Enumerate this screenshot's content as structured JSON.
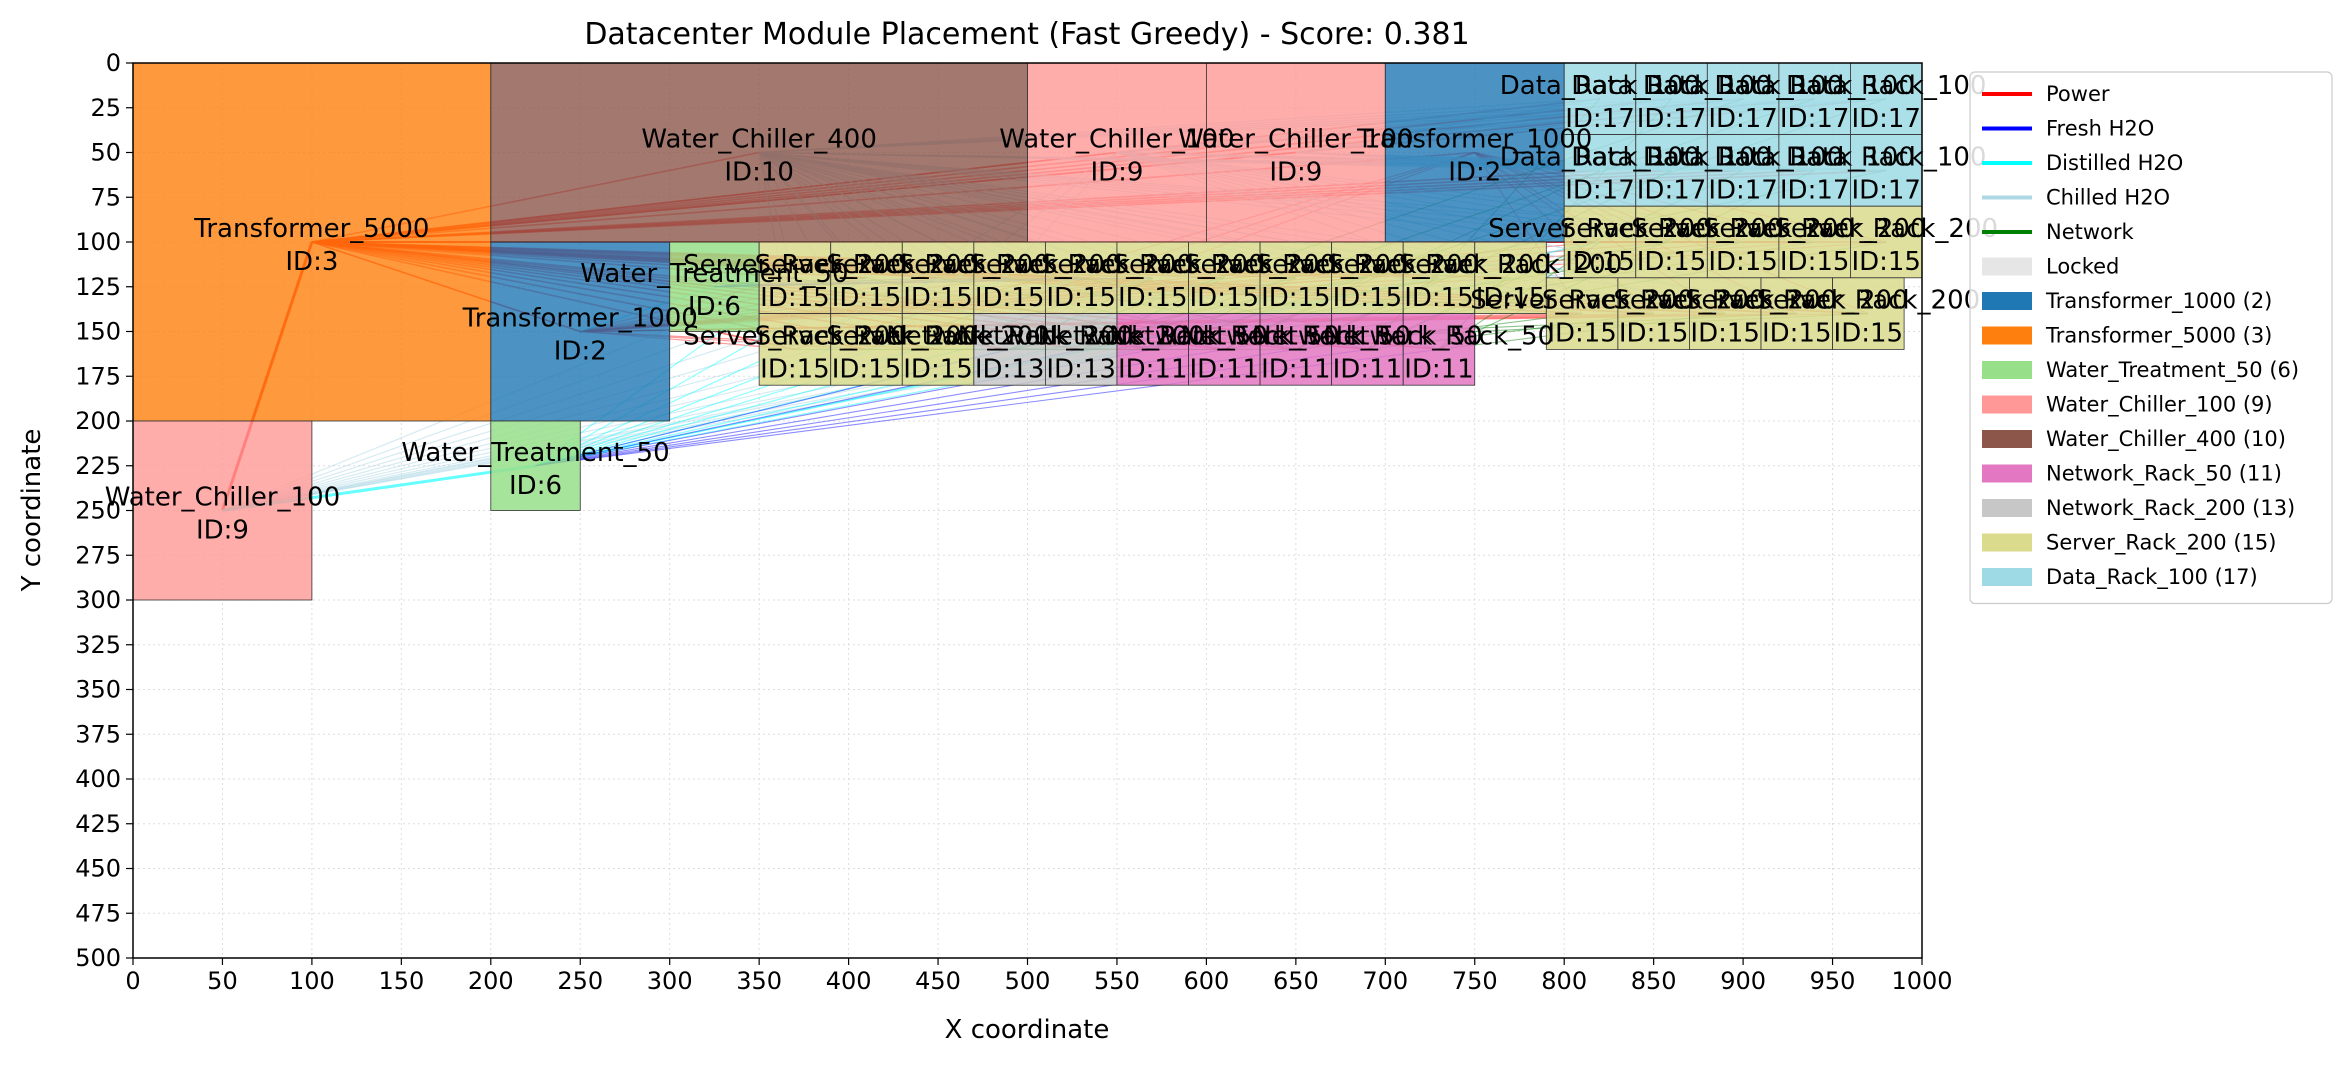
{
  "chart_data": {
    "type": "scatter",
    "title": "Datacenter Module Placement (Fast Greedy) - Score: 0.381",
    "xlabel": "X coordinate",
    "ylabel": "Y coordinate",
    "xlim": [
      0,
      1000
    ],
    "ylim": [
      500,
      0
    ],
    "y_inverted": true,
    "xticks": [
      0,
      50,
      100,
      150,
      200,
      250,
      300,
      350,
      400,
      450,
      500,
      550,
      600,
      650,
      700,
      750,
      800,
      850,
      900,
      950,
      1000
    ],
    "yticks": [
      0,
      25,
      50,
      75,
      100,
      125,
      150,
      175,
      200,
      225,
      250,
      275,
      300,
      325,
      350,
      375,
      400,
      425,
      450,
      475,
      500
    ],
    "grid": true,
    "legend_position": "upper-right-outside",
    "legend": {
      "connections": [
        {
          "label": "Power",
          "color": "#ff0000"
        },
        {
          "label": "Fresh H2O",
          "color": "#0000ff"
        },
        {
          "label": "Distilled H2O",
          "color": "#00ffff"
        },
        {
          "label": "Chilled H2O",
          "color": "#add8e6"
        },
        {
          "label": "Network",
          "color": "#008000"
        }
      ],
      "patches": [
        {
          "label": "Locked",
          "color": "#e6e6e6"
        },
        {
          "label": "Transformer_1000 (2)",
          "color": "#1f77b4"
        },
        {
          "label": "Transformer_5000 (3)",
          "color": "#ff7f0e"
        },
        {
          "label": "Water_Treatment_50 (6)",
          "color": "#98df8a"
        },
        {
          "label": "Water_Chiller_100 (9)",
          "color": "#ff9896"
        },
        {
          "label": "Water_Chiller_400 (10)",
          "color": "#8c564b"
        },
        {
          "label": "Network_Rack_50 (11)",
          "color": "#e377c2"
        },
        {
          "label": "Network_Rack_200 (13)",
          "color": "#c7c7c7"
        },
        {
          "label": "Server_Rack_200 (15)",
          "color": "#dbdb8d"
        },
        {
          "label": "Data_Rack_100 (17)",
          "color": "#9edae5"
        }
      ]
    },
    "module_colors": {
      "2": "#1f77b4",
      "3": "#ff7f0e",
      "6": "#98df8a",
      "9": "#ff9896",
      "10": "#8c564b",
      "11": "#e377c2",
      "13": "#c7c7c7",
      "15": "#dbdb8d",
      "17": "#9edae5"
    },
    "module_names": {
      "2": "Transformer_1000",
      "3": "Transformer_5000",
      "6": "Water_Treatment_50",
      "9": "Water_Chiller_100",
      "10": "Water_Chiller_400",
      "11": "Network_Rack_50",
      "13": "Network_Rack_200",
      "15": "Server_Rack_200",
      "17": "Data_Rack_100"
    },
    "modules": [
      {
        "type_id": 3,
        "x": 0,
        "y": 0,
        "w": 200,
        "h": 200,
        "label": "Transformer_5000",
        "id_label": "ID:3",
        "lx": 100,
        "ly": 100
      },
      {
        "type_id": 10,
        "x": 200,
        "y": 0,
        "w": 300,
        "h": 100,
        "label": "Water_Chiller_400",
        "id_label": "ID:10",
        "lx": 350,
        "ly": 50
      },
      {
        "type_id": 9,
        "x": 500,
        "y": 0,
        "w": 100,
        "h": 100,
        "label": "Water_Chiller_100",
        "id_label": "ID:9",
        "lx": 550,
        "ly": 50
      },
      {
        "type_id": 9,
        "x": 600,
        "y": 0,
        "w": 100,
        "h": 100,
        "label": "Water_Chiller_100",
        "id_label": "ID:9",
        "lx": 650,
        "ly": 50
      },
      {
        "type_id": 2,
        "x": 700,
        "y": 0,
        "w": 100,
        "h": 100,
        "label": "Transformer_1000",
        "id_label": "ID:2",
        "lx": 750,
        "ly": 50
      },
      {
        "type_id": 2,
        "x": 200,
        "y": 100,
        "w": 100,
        "h": 100,
        "label": "Transformer_1000",
        "id_label": "ID:2",
        "lx": 250,
        "ly": 150
      },
      {
        "type_id": 6,
        "x": 300,
        "y": 100,
        "w": 50,
        "h": 50,
        "label": "Water_Treatment_50",
        "id_label": "ID:6",
        "lx": 325,
        "ly": 125
      },
      {
        "type_id": 6,
        "x": 200,
        "y": 200,
        "w": 50,
        "h": 50,
        "label": "Water_Treatment_50",
        "id_label": "ID:6",
        "lx": 225,
        "ly": 225
      },
      {
        "type_id": 9,
        "x": 0,
        "y": 200,
        "w": 100,
        "h": 100,
        "label": "Water_Chiller_100",
        "id_label": "ID:9",
        "lx": 50,
        "ly": 250
      },
      {
        "type_id": 17,
        "x": 800,
        "y": 0,
        "w": 40,
        "h": 40,
        "label": "Data_Rack_100",
        "id_label": "ID:17",
        "lx": 820,
        "ly": 20
      },
      {
        "type_id": 17,
        "x": 840,
        "y": 0,
        "w": 40,
        "h": 40,
        "label": "Data_Rack_100",
        "id_label": "ID:17",
        "lx": 860,
        "ly": 20
      },
      {
        "type_id": 17,
        "x": 880,
        "y": 0,
        "w": 40,
        "h": 40,
        "label": "Data_Rack_100",
        "id_label": "ID:17",
        "lx": 900,
        "ly": 20
      },
      {
        "type_id": 17,
        "x": 920,
        "y": 0,
        "w": 40,
        "h": 40,
        "label": "Data_Rack_100",
        "id_label": "ID:17",
        "lx": 940,
        "ly": 20
      },
      {
        "type_id": 17,
        "x": 960,
        "y": 0,
        "w": 40,
        "h": 40,
        "label": "Data_Rack_100",
        "id_label": "ID:17",
        "lx": 980,
        "ly": 20
      },
      {
        "type_id": 17,
        "x": 800,
        "y": 40,
        "w": 40,
        "h": 40,
        "label": "Data_Rack_100",
        "id_label": "ID:17",
        "lx": 820,
        "ly": 60
      },
      {
        "type_id": 17,
        "x": 840,
        "y": 40,
        "w": 40,
        "h": 40,
        "label": "Data_Rack_100",
        "id_label": "ID:17",
        "lx": 860,
        "ly": 60
      },
      {
        "type_id": 17,
        "x": 880,
        "y": 40,
        "w": 40,
        "h": 40,
        "label": "Data_Rack_100",
        "id_label": "ID:17",
        "lx": 900,
        "ly": 60
      },
      {
        "type_id": 17,
        "x": 920,
        "y": 40,
        "w": 40,
        "h": 40,
        "label": "Data_Rack_100",
        "id_label": "ID:17",
        "lx": 940,
        "ly": 60
      },
      {
        "type_id": 17,
        "x": 960,
        "y": 40,
        "w": 40,
        "h": 40,
        "label": "Data_Rack_100",
        "id_label": "ID:17",
        "lx": 980,
        "ly": 60
      },
      {
        "type_id": 15,
        "x": 350,
        "y": 100,
        "w": 40,
        "h": 40,
        "label": "Server_Rack_200",
        "id_label": "ID:15",
        "lx": 370,
        "ly": 120
      },
      {
        "type_id": 15,
        "x": 390,
        "y": 100,
        "w": 40,
        "h": 40,
        "label": "Server_Rack_200",
        "id_label": "ID:15",
        "lx": 410,
        "ly": 120
      },
      {
        "type_id": 15,
        "x": 430,
        "y": 100,
        "w": 40,
        "h": 40,
        "label": "Server_Rack_200",
        "id_label": "ID:15",
        "lx": 450,
        "ly": 120
      },
      {
        "type_id": 15,
        "x": 470,
        "y": 100,
        "w": 40,
        "h": 40,
        "label": "Server_Rack_200",
        "id_label": "ID:15",
        "lx": 490,
        "ly": 120
      },
      {
        "type_id": 15,
        "x": 510,
        "y": 100,
        "w": 40,
        "h": 40,
        "label": "Server_Rack_200",
        "id_label": "ID:15",
        "lx": 530,
        "ly": 120
      },
      {
        "type_id": 15,
        "x": 550,
        "y": 100,
        "w": 40,
        "h": 40,
        "label": "Server_Rack_200",
        "id_label": "ID:15",
        "lx": 570,
        "ly": 120
      },
      {
        "type_id": 15,
        "x": 590,
        "y": 100,
        "w": 40,
        "h": 40,
        "label": "Server_Rack_200",
        "id_label": "ID:15",
        "lx": 610,
        "ly": 120
      },
      {
        "type_id": 15,
        "x": 630,
        "y": 100,
        "w": 40,
        "h": 40,
        "label": "Server_Rack_200",
        "id_label": "ID:15",
        "lx": 650,
        "ly": 120
      },
      {
        "type_id": 15,
        "x": 670,
        "y": 100,
        "w": 40,
        "h": 40,
        "label": "Server_Rack_200",
        "id_label": "ID:15",
        "lx": 690,
        "ly": 120
      },
      {
        "type_id": 15,
        "x": 710,
        "y": 100,
        "w": 40,
        "h": 40,
        "label": "Server_Rack_200",
        "id_label": "ID:15",
        "lx": 730,
        "ly": 120
      },
      {
        "type_id": 15,
        "x": 750,
        "y": 100,
        "w": 40,
        "h": 40,
        "label": "Server_Rack_200",
        "id_label": "ID:15",
        "lx": 770,
        "ly": 120
      },
      {
        "type_id": 15,
        "x": 800,
        "y": 80,
        "w": 40,
        "h": 40,
        "label": "Server_Rack_200",
        "id_label": "ID:15",
        "lx": 820,
        "ly": 100
      },
      {
        "type_id": 15,
        "x": 840,
        "y": 80,
        "w": 40,
        "h": 40,
        "label": "Server_Rack_200",
        "id_label": "ID:15",
        "lx": 860,
        "ly": 100
      },
      {
        "type_id": 15,
        "x": 880,
        "y": 80,
        "w": 40,
        "h": 40,
        "label": "Server_Rack_200",
        "id_label": "ID:15",
        "lx": 900,
        "ly": 100
      },
      {
        "type_id": 15,
        "x": 920,
        "y": 80,
        "w": 40,
        "h": 40,
        "label": "Server_Rack_200",
        "id_label": "ID:15",
        "lx": 940,
        "ly": 100
      },
      {
        "type_id": 15,
        "x": 960,
        "y": 80,
        "w": 40,
        "h": 40,
        "label": "Server_Rack_200",
        "id_label": "ID:15",
        "lx": 980,
        "ly": 100
      },
      {
        "type_id": 15,
        "x": 790,
        "y": 120,
        "w": 40,
        "h": 40,
        "label": "Server_Rack_200",
        "id_label": "ID:15",
        "lx": 810,
        "ly": 140
      },
      {
        "type_id": 15,
        "x": 830,
        "y": 120,
        "w": 40,
        "h": 40,
        "label": "Server_Rack_200",
        "id_label": "ID:15",
        "lx": 850,
        "ly": 140
      },
      {
        "type_id": 15,
        "x": 870,
        "y": 120,
        "w": 40,
        "h": 40,
        "label": "Server_Rack_200",
        "id_label": "ID:15",
        "lx": 890,
        "ly": 140
      },
      {
        "type_id": 15,
        "x": 910,
        "y": 120,
        "w": 40,
        "h": 40,
        "label": "Server_Rack_200",
        "id_label": "ID:15",
        "lx": 930,
        "ly": 140
      },
      {
        "type_id": 15,
        "x": 950,
        "y": 120,
        "w": 40,
        "h": 40,
        "label": "Server_Rack_200",
        "id_label": "ID:15",
        "lx": 970,
        "ly": 140
      },
      {
        "type_id": 15,
        "x": 350,
        "y": 140,
        "w": 40,
        "h": 40,
        "label": "Server_Rack_200",
        "id_label": "ID:15",
        "lx": 370,
        "ly": 160
      },
      {
        "type_id": 15,
        "x": 390,
        "y": 140,
        "w": 40,
        "h": 40,
        "label": "Server_Rack_200",
        "id_label": "ID:15",
        "lx": 410,
        "ly": 160
      },
      {
        "type_id": 15,
        "x": 430,
        "y": 140,
        "w": 40,
        "h": 40,
        "label": "Server_Rack_200",
        "id_label": "ID:15",
        "lx": 450,
        "ly": 160
      },
      {
        "type_id": 13,
        "x": 470,
        "y": 140,
        "w": 40,
        "h": 40,
        "label": "Network_Rack_200",
        "id_label": "ID:13",
        "lx": 490,
        "ly": 160
      },
      {
        "type_id": 13,
        "x": 510,
        "y": 140,
        "w": 40,
        "h": 40,
        "label": "Network_Rack_200",
        "id_label": "ID:13",
        "lx": 530,
        "ly": 160
      },
      {
        "type_id": 11,
        "x": 550,
        "y": 140,
        "w": 40,
        "h": 40,
        "label": "Network_Rack_50",
        "id_label": "ID:11",
        "lx": 570,
        "ly": 160
      },
      {
        "type_id": 11,
        "x": 590,
        "y": 140,
        "w": 40,
        "h": 40,
        "label": "Network_Rack_50",
        "id_label": "ID:11",
        "lx": 610,
        "ly": 160
      },
      {
        "type_id": 11,
        "x": 630,
        "y": 140,
        "w": 40,
        "h": 40,
        "label": "Network_Rack_50",
        "id_label": "ID:11",
        "lx": 650,
        "ly": 160
      },
      {
        "type_id": 11,
        "x": 670,
        "y": 140,
        "w": 40,
        "h": 40,
        "label": "Network_Rack_50",
        "id_label": "ID:11",
        "lx": 690,
        "ly": 160
      },
      {
        "type_id": 11,
        "x": 710,
        "y": 140,
        "w": 40,
        "h": 40,
        "label": "Network_Rack_50",
        "id_label": "ID:11",
        "lx": 730,
        "ly": 160
      }
    ]
  }
}
